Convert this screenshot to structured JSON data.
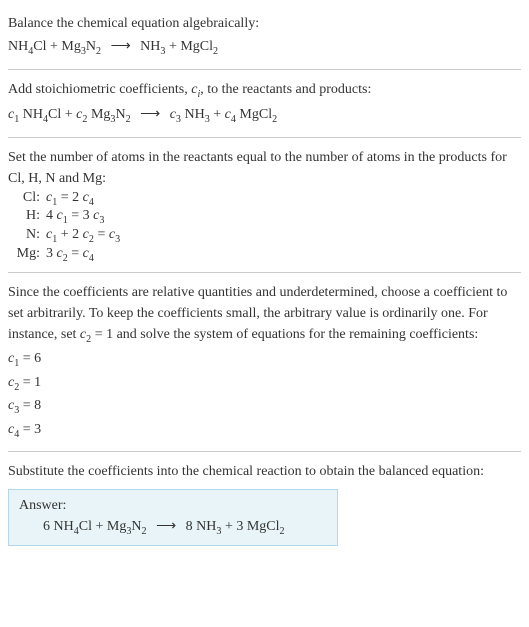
{
  "s1": {
    "intro": "Balance the chemical equation algebraically:",
    "r1a": "NH",
    "r1b": "4",
    "r1c": "Cl + Mg",
    "r1d": "3",
    "r1e": "N",
    "r1f": "2",
    "arrow": "⟶",
    "p1a": "NH",
    "p1b": "3",
    "p1c": " + MgCl",
    "p1d": "2"
  },
  "s2": {
    "intro_a": "Add stoichiometric coefficients, ",
    "intro_c": "c",
    "intro_i": "i",
    "intro_b": ", to the reactants and products:",
    "c1": "c",
    "n1": "1",
    "sp1": " NH",
    "sub1": "4",
    "sp2": "Cl + ",
    "c2": "c",
    "n2": "2",
    "sp3": " Mg",
    "sub2": "3",
    "sp4": "N",
    "sub3": "2",
    "arrow": "⟶",
    "c3": "c",
    "n3": "3",
    "sp5": " NH",
    "sub4": "3",
    "sp6": " + ",
    "c4": "c",
    "n4": "4",
    "sp7": " MgCl",
    "sub5": "2"
  },
  "s3": {
    "intro": "Set the number of atoms in the reactants equal to the number of atoms in the products for Cl, H, N and Mg:",
    "rows": [
      {
        "label": "Cl:",
        "lhs_c": "c",
        "lhs_n": "1",
        "mid": " = 2 ",
        "rhs_c": "c",
        "rhs_n": "4"
      },
      {
        "label": "H:",
        "pre": "4 ",
        "lhs_c": "c",
        "lhs_n": "1",
        "mid": " = 3 ",
        "rhs_c": "c",
        "rhs_n": "3"
      },
      {
        "label": "N:",
        "lhs_c": "c",
        "lhs_n": "1",
        "mid": " + 2 ",
        "mc": "c",
        "mn": "2",
        "mid2": " = ",
        "rhs_c": "c",
        "rhs_n": "3"
      },
      {
        "label": "Mg:",
        "pre": "3 ",
        "lhs_c": "c",
        "lhs_n": "2",
        "mid": " = ",
        "rhs_c": "c",
        "rhs_n": "4"
      }
    ]
  },
  "s4": {
    "intro_a": "Since the coefficients are relative quantities and underdetermined, choose a coefficient to set arbitrarily. To keep the coefficients small, the arbitrary value is ordinarily one. For instance, set ",
    "set_c": "c",
    "set_n": "2",
    "intro_b": " = 1 and solve the system of equations for the remaining coefficients:",
    "sol": [
      {
        "c": "c",
        "n": "1",
        "eq": " = 6"
      },
      {
        "c": "c",
        "n": "2",
        "eq": " = 1"
      },
      {
        "c": "c",
        "n": "3",
        "eq": " = 8"
      },
      {
        "c": "c",
        "n": "4",
        "eq": " = 3"
      }
    ]
  },
  "s5": {
    "intro": "Substitute the coefficients into the chemical reaction to obtain the balanced equation:",
    "answer_label": "Answer:",
    "k1": "6 NH",
    "sub1": "4",
    "k2": "Cl + Mg",
    "sub2": "3",
    "k3": "N",
    "sub3": "2",
    "arrow": "⟶",
    "k4": "8 NH",
    "sub4": "3",
    "k5": " + 3 MgCl",
    "sub5": "2"
  },
  "colors": {
    "answer_bg": "#e8f4f8",
    "answer_border": "#b0d8e8",
    "divider": "#cccccc",
    "text": "#333333"
  }
}
